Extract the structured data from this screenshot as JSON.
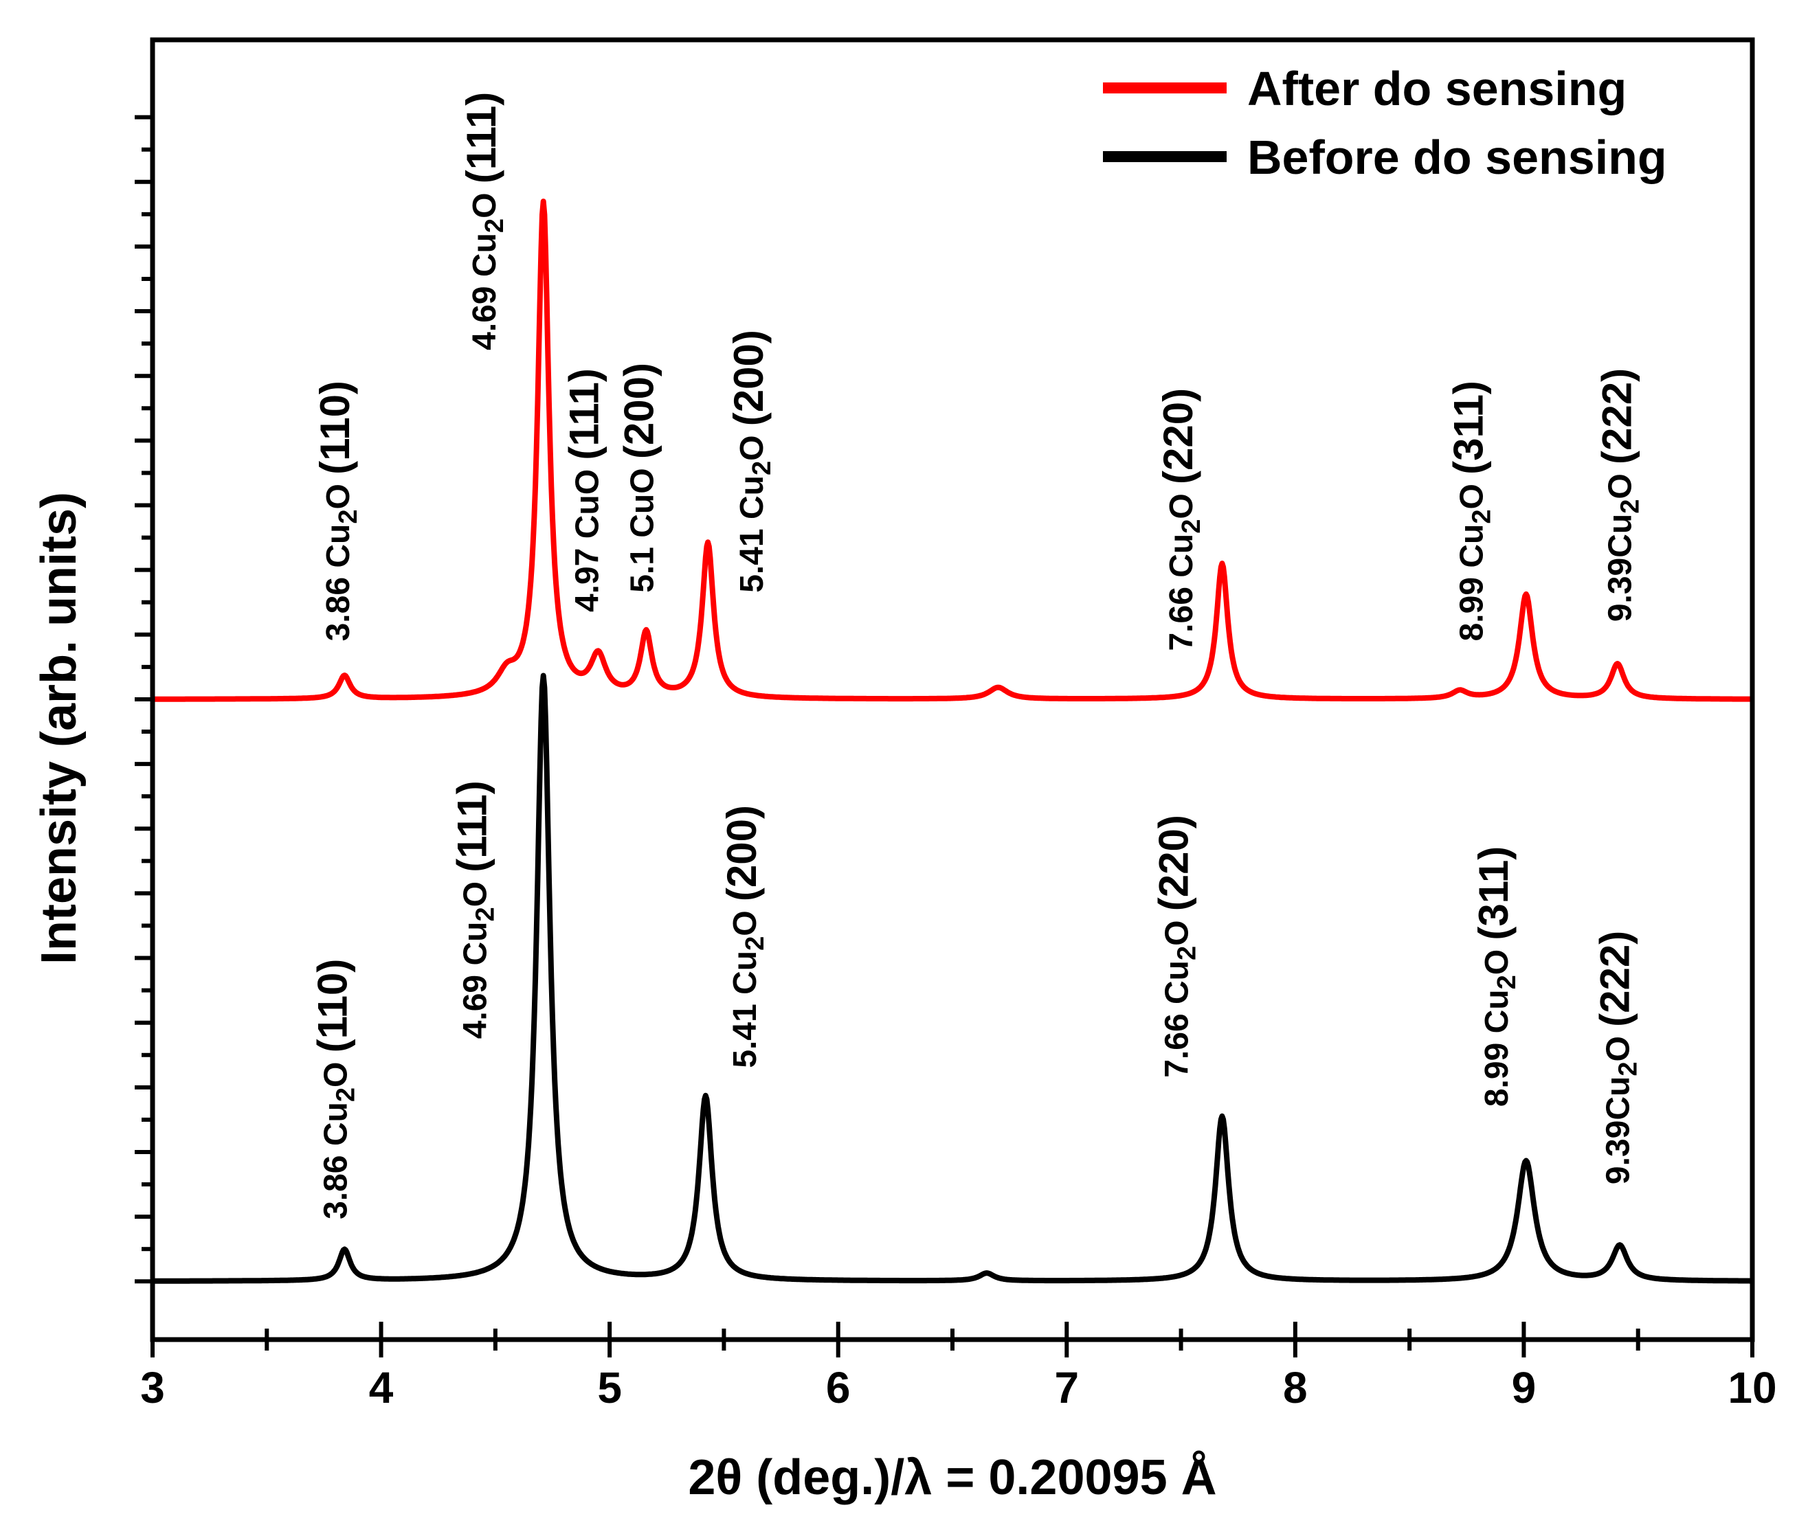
{
  "chart_data": {
    "type": "line",
    "title": "",
    "xlabel": "2θ (deg.)/λ = 0.20095 Å",
    "ylabel": "Intensity (arb. units)",
    "xlim": [
      3,
      10
    ],
    "ylim": [
      -0.3,
      6.4
    ],
    "x_ticks": [
      "3",
      "4",
      "5",
      "6",
      "7",
      "8",
      "9",
      "10"
    ],
    "legend": {
      "position": "top-right"
    },
    "colors": {
      "after": "#ff0000",
      "before": "#000000",
      "axis": "#000000"
    },
    "series": [
      {
        "name": "After do sensing",
        "color": "#ff0000",
        "baseline": 3.0,
        "peaks": [
          {
            "pos": 3.84,
            "height": 0.12,
            "width": 0.03
          },
          {
            "pos": 4.55,
            "height": 0.1,
            "width": 0.05
          },
          {
            "pos": 4.71,
            "height": 2.55,
            "width": 0.03
          },
          {
            "pos": 4.95,
            "height": 0.2,
            "width": 0.04
          },
          {
            "pos": 5.16,
            "height": 0.33,
            "width": 0.03
          },
          {
            "pos": 5.43,
            "height": 0.8,
            "width": 0.03
          },
          {
            "pos": 6.7,
            "height": 0.06,
            "width": 0.05
          },
          {
            "pos": 7.68,
            "height": 0.7,
            "width": 0.03
          },
          {
            "pos": 8.72,
            "height": 0.04,
            "width": 0.04
          },
          {
            "pos": 9.01,
            "height": 0.54,
            "width": 0.035
          },
          {
            "pos": 9.41,
            "height": 0.18,
            "width": 0.035
          }
        ]
      },
      {
        "name": "Before do sensing",
        "color": "#000000",
        "baseline": 0.0,
        "peaks": [
          {
            "pos": 3.84,
            "height": 0.16,
            "width": 0.03
          },
          {
            "pos": 4.71,
            "height": 3.12,
            "width": 0.035
          },
          {
            "pos": 5.42,
            "height": 0.95,
            "width": 0.035
          },
          {
            "pos": 6.65,
            "height": 0.04,
            "width": 0.04
          },
          {
            "pos": 7.68,
            "height": 0.85,
            "width": 0.035
          },
          {
            "pos": 9.01,
            "height": 0.62,
            "width": 0.045
          },
          {
            "pos": 9.42,
            "height": 0.18,
            "width": 0.04
          }
        ]
      }
    ],
    "annotations": [
      {
        "series": "After do sensing",
        "x": 3.86,
        "y": 3.3,
        "parts": [
          [
            "3.86 Cu",
            "n"
          ],
          [
            "2",
            "s"
          ],
          [
            "O ",
            "n"
          ],
          [
            "(110)",
            "p"
          ]
        ]
      },
      {
        "series": "After do sensing",
        "x": 4.5,
        "y": 4.8,
        "parts": [
          [
            "4.69 Cu",
            "n"
          ],
          [
            "2",
            "s"
          ],
          [
            "O ",
            "n"
          ],
          [
            "(111)",
            "p"
          ]
        ]
      },
      {
        "series": "After do sensing",
        "x": 4.95,
        "y": 3.45,
        "parts": [
          [
            "4.97 CuO ",
            "n"
          ],
          [
            "(111)",
            "p"
          ]
        ]
      },
      {
        "series": "After do sensing",
        "x": 5.19,
        "y": 3.55,
        "parts": [
          [
            "5.1 CuO ",
            "n"
          ],
          [
            "(200)",
            "p"
          ]
        ]
      },
      {
        "series": "After do sensing",
        "x": 5.67,
        "y": 3.55,
        "parts": [
          [
            "5.41 Cu",
            "n"
          ],
          [
            "2",
            "s"
          ],
          [
            "O ",
            "n"
          ],
          [
            "(200)",
            "p"
          ]
        ]
      },
      {
        "series": "After do sensing",
        "x": 7.55,
        "y": 3.25,
        "parts": [
          [
            "7.66 Cu",
            "n"
          ],
          [
            "2",
            "s"
          ],
          [
            "O ",
            "n"
          ],
          [
            "(220)",
            "p"
          ]
        ]
      },
      {
        "series": "After do sensing",
        "x": 8.82,
        "y": 3.3,
        "parts": [
          [
            "8.99 Cu",
            "n"
          ],
          [
            "2",
            "s"
          ],
          [
            "O ",
            "n"
          ],
          [
            "(311)",
            "p"
          ]
        ]
      },
      {
        "series": "After do sensing",
        "x": 9.47,
        "y": 3.4,
        "parts": [
          [
            "9.39Cu",
            "n"
          ],
          [
            "2",
            "s"
          ],
          [
            "O ",
            "n"
          ],
          [
            "(222)",
            "p"
          ]
        ]
      },
      {
        "series": "Before do sensing",
        "x": 3.85,
        "y": 0.32,
        "parts": [
          [
            "3.86 Cu",
            "n"
          ],
          [
            "2",
            "s"
          ],
          [
            "O ",
            "n"
          ],
          [
            "(110)",
            "p"
          ]
        ]
      },
      {
        "series": "Before do sensing",
        "x": 4.46,
        "y": 1.25,
        "parts": [
          [
            "4.69 Cu",
            "n"
          ],
          [
            "2",
            "s"
          ],
          [
            "O ",
            "n"
          ],
          [
            "(111)",
            "p"
          ]
        ]
      },
      {
        "series": "Before do sensing",
        "x": 5.64,
        "y": 1.1,
        "parts": [
          [
            "5.41 Cu",
            "n"
          ],
          [
            "2",
            "s"
          ],
          [
            "O ",
            "n"
          ],
          [
            "(200)",
            "p"
          ]
        ]
      },
      {
        "series": "Before do sensing",
        "x": 7.53,
        "y": 1.05,
        "parts": [
          [
            "7.66 Cu",
            "n"
          ],
          [
            "2",
            "s"
          ],
          [
            "O ",
            "n"
          ],
          [
            "(220)",
            "p"
          ]
        ]
      },
      {
        "series": "Before do sensing",
        "x": 8.93,
        "y": 0.9,
        "parts": [
          [
            "8.99 Cu",
            "n"
          ],
          [
            "2",
            "s"
          ],
          [
            "O ",
            "n"
          ],
          [
            "(311)",
            "p"
          ]
        ]
      },
      {
        "series": "Before do sensing",
        "x": 9.46,
        "y": 0.5,
        "parts": [
          [
            "9.39Cu",
            "n"
          ],
          [
            "2",
            "s"
          ],
          [
            "O ",
            "n"
          ],
          [
            "(222)",
            "p"
          ]
        ]
      }
    ]
  }
}
